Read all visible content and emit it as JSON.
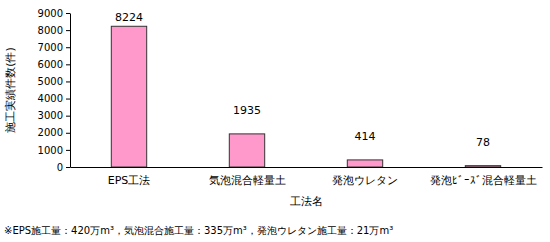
{
  "chart_data": {
    "type": "bar",
    "x_label": "工法名",
    "y_label": "施工実績件数(件)",
    "categories": [
      "EPS工法",
      "気泡混合軽量土",
      "発泡ウレタン",
      "発泡ﾋﾞｰｽﾞ混合軽量土"
    ],
    "values": [
      8224,
      1935,
      414,
      78
    ],
    "color": "#ff99cc",
    "ylim": [
      0,
      9000
    ],
    "yticks": [
      0,
      1000,
      2000,
      3000,
      4000,
      5000,
      6000,
      7000,
      8000,
      9000
    ],
    "grid": false,
    "data_labels": true,
    "annotations": [
      "※EPS施工量：420万m³，気泡混合施工量：335万m³，発泡ウレタン施工量：21万m³"
    ]
  }
}
